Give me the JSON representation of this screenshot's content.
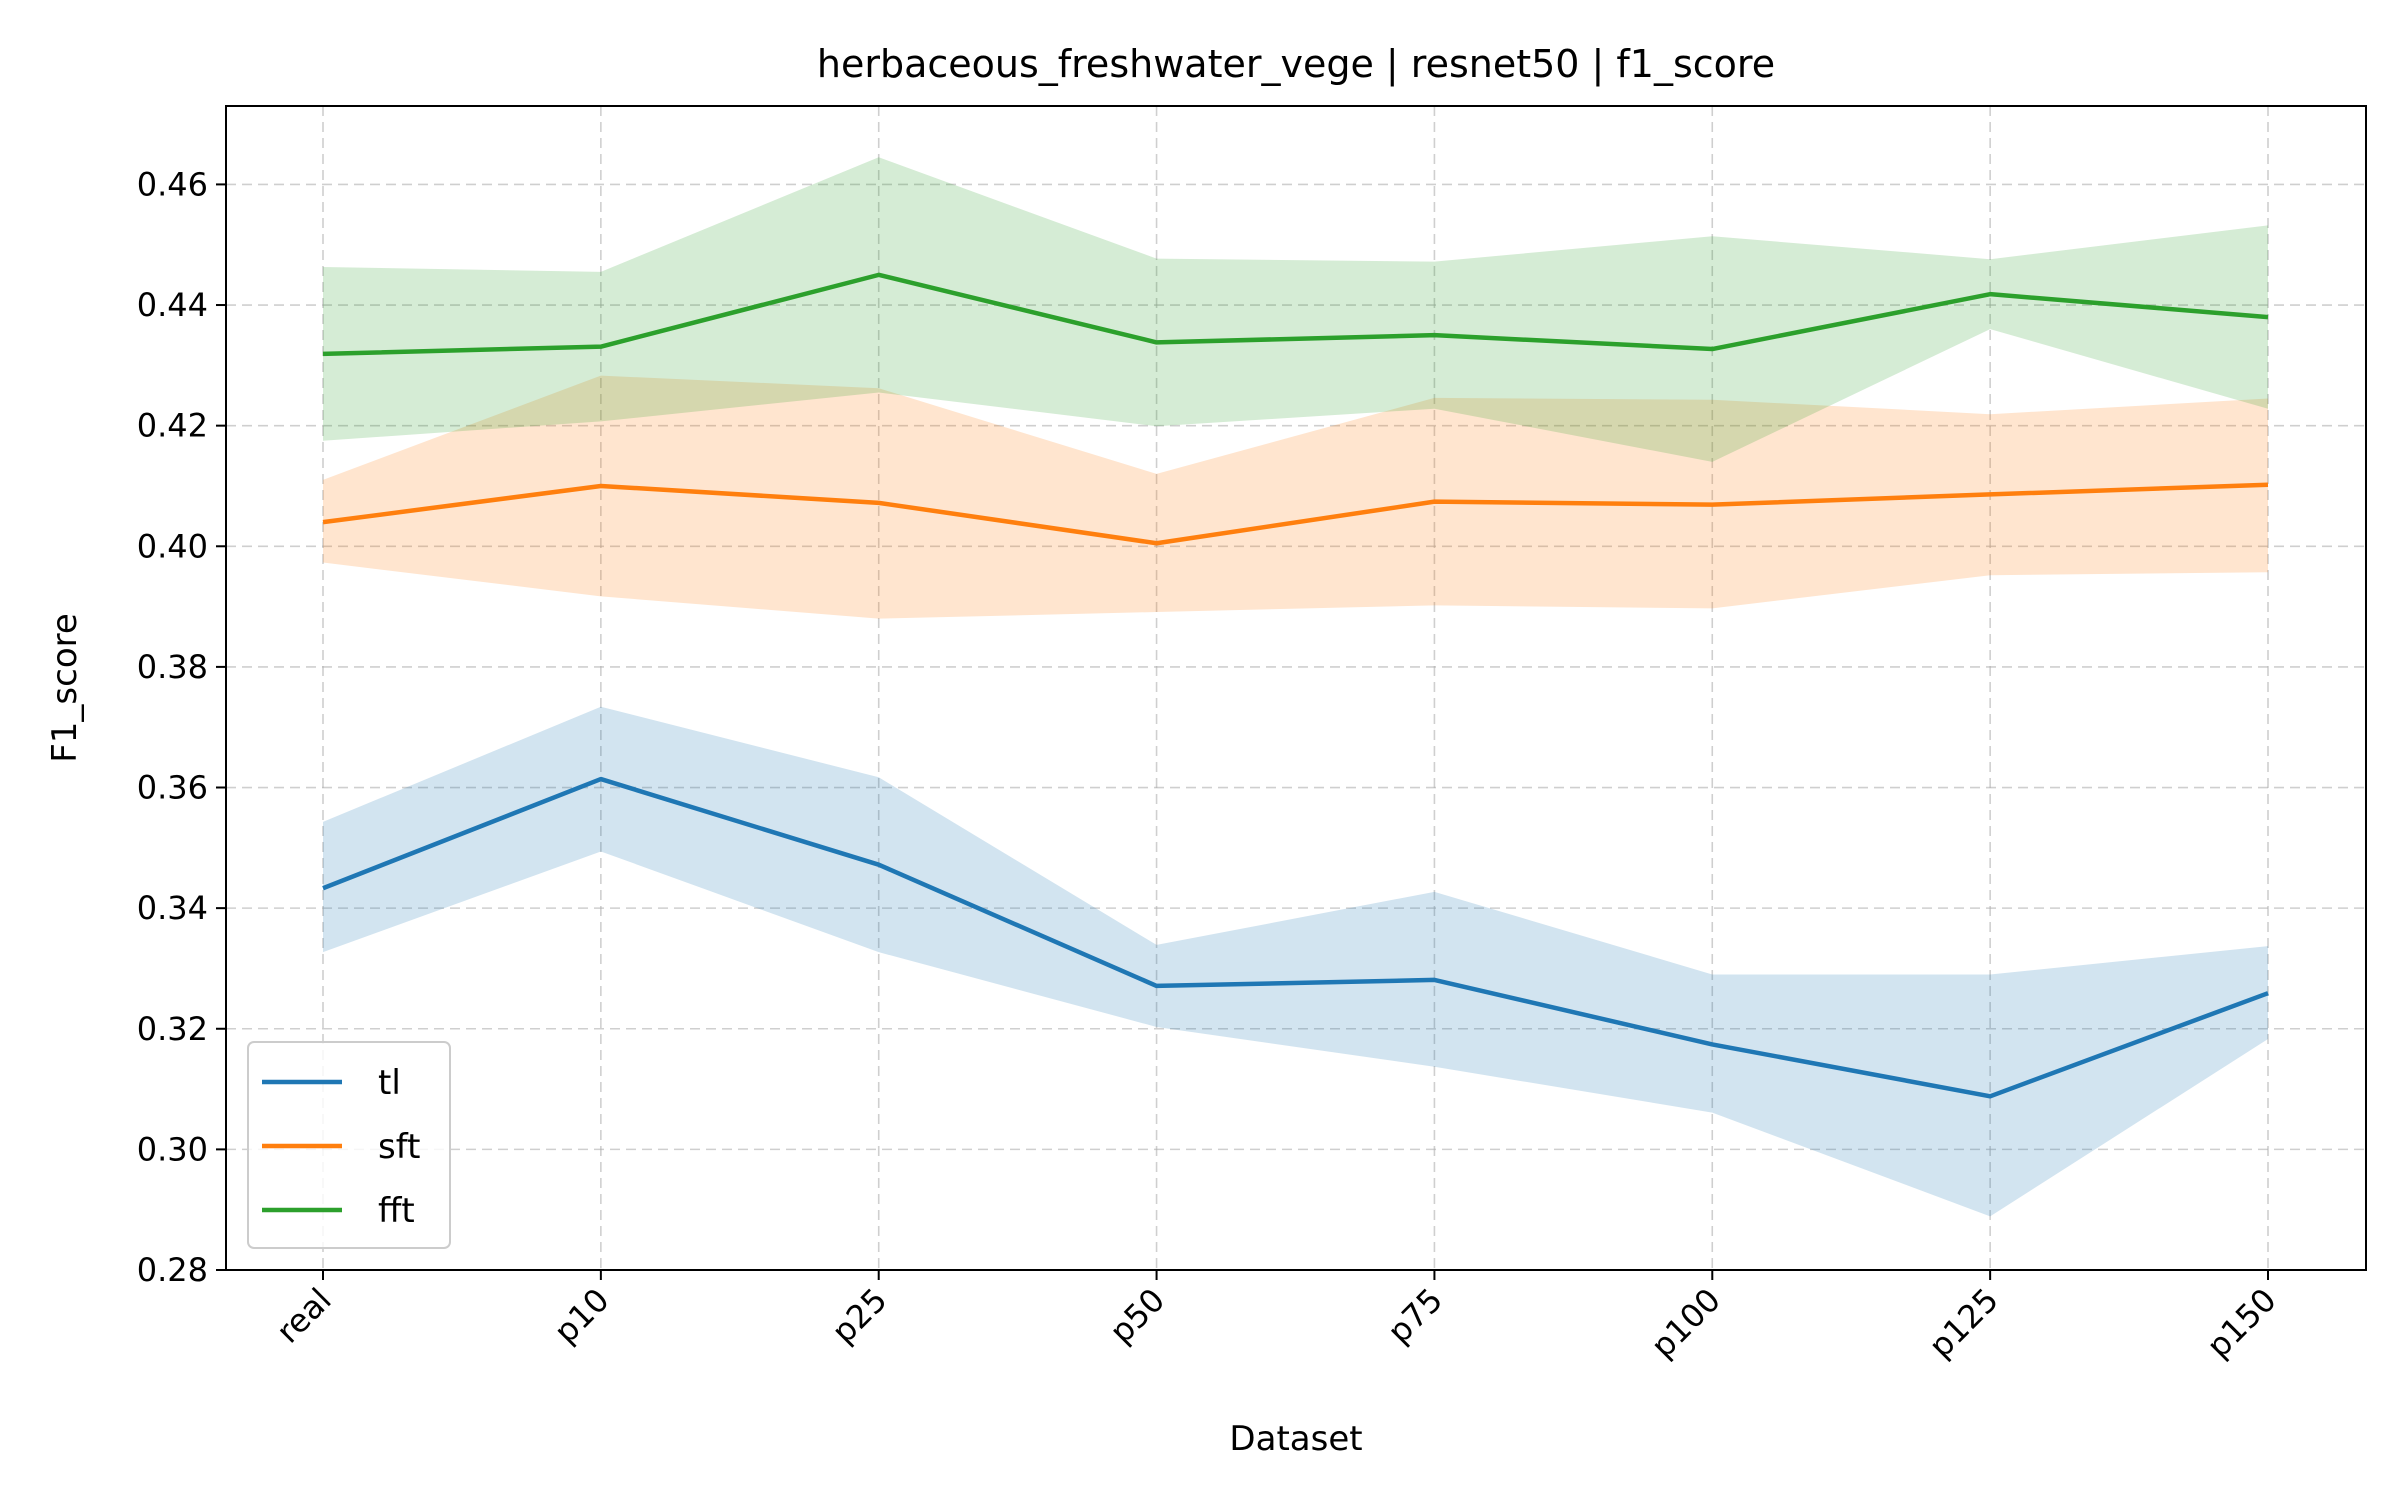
{
  "chart_data": {
    "type": "line",
    "title": "herbaceous_freshwater_vege | resnet50 | f1_score",
    "xlabel": "Dataset",
    "ylabel": "F1_score",
    "categories": [
      "real",
      "p10",
      "p25",
      "p50",
      "p75",
      "p100",
      "p125",
      "p150"
    ],
    "ylim": [
      0.28,
      0.473
    ],
    "yticks": [
      "0.28",
      "0.30",
      "0.32",
      "0.34",
      "0.36",
      "0.38",
      "0.40",
      "0.42",
      "0.44",
      "0.46"
    ],
    "grid": true,
    "legend_position": "lower-left",
    "series": [
      {
        "name": "tl",
        "color": "#1f77b4",
        "values": [
          0.3433,
          0.3614,
          0.3472,
          0.3271,
          0.3281,
          0.3174,
          0.3088,
          0.3259
        ],
        "upper": [
          0.3543,
          0.3734,
          0.3617,
          0.3339,
          0.3427,
          0.329,
          0.329,
          0.3337
        ],
        "lower": [
          0.3327,
          0.3494,
          0.3327,
          0.3203,
          0.3137,
          0.3061,
          0.2889,
          0.3183
        ]
      },
      {
        "name": "sft",
        "color": "#ff7f0e",
        "values": [
          0.404,
          0.41,
          0.4072,
          0.4005,
          0.4074,
          0.4069,
          0.4086,
          0.4102
        ],
        "upper": [
          0.411,
          0.4283,
          0.4262,
          0.412,
          0.4246,
          0.4243,
          0.4219,
          0.4245
        ],
        "lower": [
          0.3973,
          0.3917,
          0.388,
          0.3891,
          0.3902,
          0.3897,
          0.3952,
          0.3957
        ]
      },
      {
        "name": "fft",
        "color": "#2ca02c",
        "values": [
          0.4319,
          0.4331,
          0.445,
          0.4338,
          0.435,
          0.4327,
          0.4418,
          0.438
        ],
        "upper": [
          0.4463,
          0.4455,
          0.4645,
          0.4477,
          0.4472,
          0.4514,
          0.4476,
          0.4532
        ],
        "lower": [
          0.4175,
          0.4207,
          0.4255,
          0.4199,
          0.4228,
          0.414,
          0.436,
          0.4228
        ]
      }
    ]
  }
}
